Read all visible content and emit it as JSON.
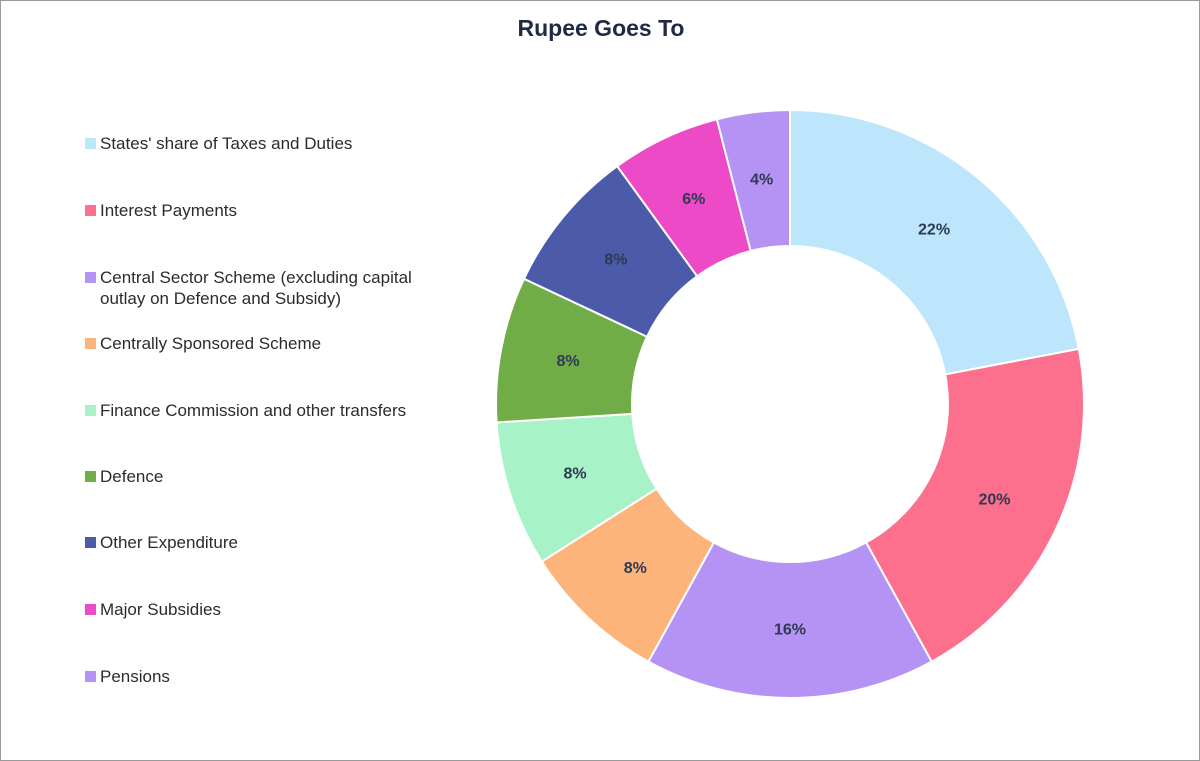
{
  "chart_data": {
    "type": "pie",
    "donut": true,
    "title": "Rupee Goes To",
    "legend_position": "left",
    "categories": [
      "States' share of Taxes and Duties",
      "Interest Payments",
      "Central Sector Scheme (excluding capital outlay on Defence and Subsidy)",
      "Centrally Sponsored Scheme",
      "Finance Commission and other transfers",
      "Defence",
      "Other Expenditure",
      "Major Subsidies",
      "Pensions"
    ],
    "values": [
      22,
      20,
      16,
      8,
      8,
      8,
      8,
      6,
      4
    ],
    "labels": [
      "22%",
      "20%",
      "16%",
      "8%",
      "8%",
      "8%",
      "8%",
      "6%",
      "4%"
    ],
    "colors": [
      "#bde5fc",
      "#fc6f8d",
      "#b593f4",
      "#fdb47b",
      "#a7f2c7",
      "#71ad47",
      "#4b5aa9",
      "#ec4ac7",
      "#b593f4"
    ]
  }
}
